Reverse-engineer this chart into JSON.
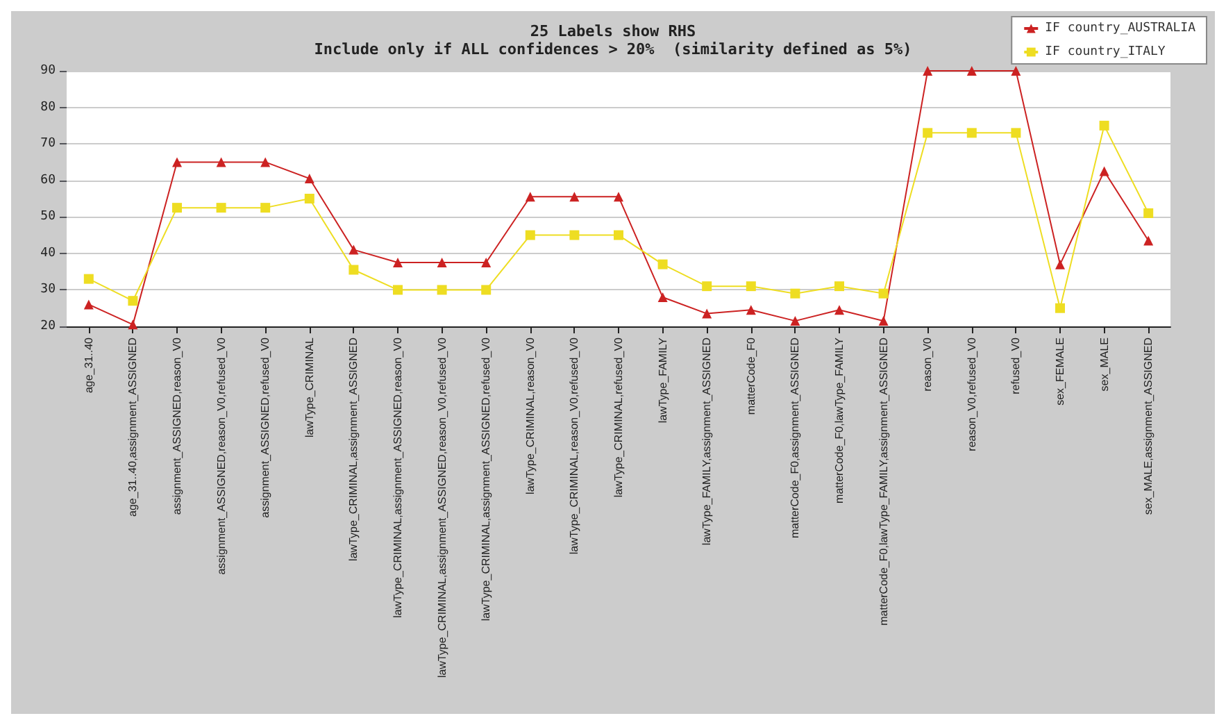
{
  "chart_data": {
    "type": "line",
    "title": "25 Labels show RHS",
    "subtitle": "Include only if ALL confidences > 20%  (similarity defined as 5%)",
    "categories": [
      "age_31..40",
      "age_31..40,assignment_ASSIGNED",
      "assignment_ASSIGNED,reason_V0",
      "assignment_ASSIGNED,reason_V0,refused_V0",
      "assignment_ASSIGNED,refused_V0",
      "lawType_CRIMINAL",
      "lawType_CRIMINAL,assignment_ASSIGNED",
      "lawType_CRIMINAL,assignment_ASSIGNED,reason_V0",
      "lawType_CRIMINAL,assignment_ASSIGNED,reason_V0,refused_V0",
      "lawType_CRIMINAL,assignment_ASSIGNED,refused_V0",
      "lawType_CRIMINAL,reason_V0",
      "lawType_CRIMINAL,reason_V0,refused_V0",
      "lawType_CRIMINAL,refused_V0",
      "lawType_FAMILY",
      "lawType_FAMILY,assignment_ASSIGNED",
      "matterCode_F0",
      "matterCode_F0,assignment_ASSIGNED",
      "matterCode_F0,lawType_FAMILY",
      "matterCode_F0,lawType_FAMILY,assignment_ASSIGNED",
      "reason_V0",
      "reason_V0,refused_V0",
      "refused_V0",
      "sex_FEMALE",
      "sex_MALE",
      "sex_MALE,assignment_ASSIGNED"
    ],
    "series": [
      {
        "name": "IF country_AUSTRALIA",
        "color": "#cc2222",
        "marker": "triangle",
        "values": [
          26,
          20.5,
          65,
          65,
          65,
          60.5,
          41,
          37.5,
          37.5,
          37.5,
          55.5,
          55.5,
          55.5,
          28,
          23.5,
          24.5,
          21.5,
          24.5,
          21.5,
          90,
          90,
          90,
          37,
          62.5,
          43.5
        ]
      },
      {
        "name": "IF country_ITALY",
        "color": "#eedd22",
        "marker": "square",
        "values": [
          33,
          27,
          52.5,
          52.5,
          52.5,
          55,
          35.5,
          30,
          30,
          30,
          45,
          45,
          45,
          37,
          31,
          31,
          29,
          31,
          29,
          73,
          73,
          73,
          25,
          75,
          51
        ]
      }
    ],
    "ylim": [
      20,
      90
    ],
    "yticks": [
      20,
      30,
      40,
      50,
      60,
      70,
      80,
      90
    ],
    "grid": "y",
    "legend": "top right"
  }
}
